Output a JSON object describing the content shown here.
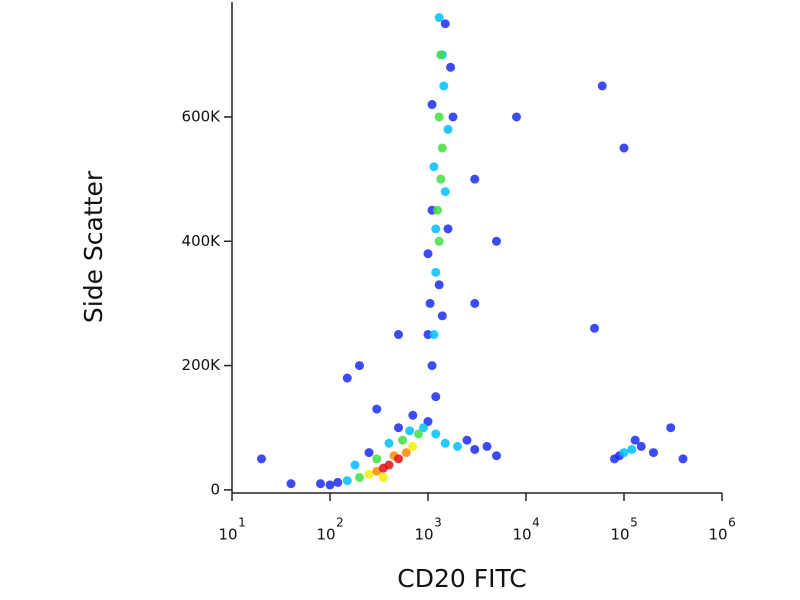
{
  "chart_data": {
    "type": "scatter",
    "x_label": "CD20 FITC",
    "y_label": "Side Scatter",
    "xscale": "log",
    "xlim": [
      10,
      1000000
    ],
    "ylim": [
      -5000,
      785000
    ],
    "xticks": [
      {
        "value": 10,
        "label": "10",
        "sup": "1"
      },
      {
        "value": 100,
        "label": "10",
        "sup": "2"
      },
      {
        "value": 1000,
        "label": "10",
        "sup": "3"
      },
      {
        "value": 10000,
        "label": "10",
        "sup": "4"
      },
      {
        "value": 100000,
        "label": "10",
        "sup": "5"
      },
      {
        "value": 1000000,
        "label": "10",
        "sup": "6"
      }
    ],
    "yticks": [
      0,
      {
        "value": 200000,
        "label": "200K"
      },
      {
        "value": 400000,
        "label": "400K"
      },
      {
        "value": 600000,
        "label": "600K"
      }
    ],
    "series": [
      {
        "x": [
          120,
          1000,
          700,
          100,
          250,
          500,
          80,
          1200,
          1100,
          1050,
          1500,
          1100,
          1700,
          1000,
          1600,
          1000,
          1400,
          1300,
          1100,
          1800,
          3000,
          4000,
          5000,
          2500,
          90000,
          150000,
          80000,
          130000,
          200000,
          300,
          200,
          500,
          3000,
          5000,
          8000,
          60000,
          100000,
          3000,
          150,
          50000,
          20,
          300000,
          40,
          400000,
          150,
          900,
          650,
          180,
          400,
          1150,
          1200,
          1450,
          1400,
          1200,
          1500,
          1150,
          1600,
          1300,
          1500,
          2000,
          1200,
          100000,
          120000,
          800,
          200,
          550,
          300,
          1300,
          1250,
          1350,
          1400,
          1300,
          1350,
          700,
          250,
          350,
          600,
          300,
          450,
          400,
          500,
          350
        ],
        "values": [
          12000,
          110000,
          120000,
          8000,
          60000,
          100000,
          10000,
          150000,
          200000,
          300000,
          750000,
          620000,
          680000,
          380000,
          420000,
          250000,
          280000,
          330000,
          450000,
          600000,
          65000,
          70000,
          55000,
          80000,
          55000,
          70000,
          50000,
          80000,
          60000,
          130000,
          200000,
          250000,
          300000,
          400000,
          600000,
          650000,
          550000,
          500000,
          180000,
          260000,
          50000,
          100000,
          10000,
          50000,
          15000,
          100000,
          95000,
          40000,
          75000,
          250000,
          350000,
          650000,
          700000,
          420000,
          480000,
          520000,
          580000,
          760000,
          75000,
          70000,
          90000,
          60000,
          65000,
          90000,
          20000,
          80000,
          50000,
          400000,
          450000,
          500000,
          550000,
          600000,
          700000,
          70000,
          25000,
          20000,
          60000,
          30000,
          55000,
          40000,
          50000,
          35000
        ],
        "colors": [
          "#1a2cf0",
          "#1a2cf0",
          "#1a2cf0",
          "#1a2cf0",
          "#1a2cf0",
          "#1a2cf0",
          "#1a2cf0",
          "#1a2cf0",
          "#1a2cf0",
          "#1a2cf0",
          "#1a2cf0",
          "#1a2cf0",
          "#1a2cf0",
          "#1a2cf0",
          "#1a2cf0",
          "#1a2cf0",
          "#1a2cf0",
          "#1a2cf0",
          "#1a2cf0",
          "#1a2cf0",
          "#1a2cf0",
          "#1a2cf0",
          "#1a2cf0",
          "#1a2cf0",
          "#1a2cf0",
          "#1a2cf0",
          "#1a2cf0",
          "#1a2cf0",
          "#1a2cf0",
          "#1a2cf0",
          "#1a2cf0",
          "#1a2cf0",
          "#1a2cf0",
          "#1a2cf0",
          "#1a2cf0",
          "#1a2cf0",
          "#1a2cf0",
          "#1a2cf0",
          "#1a2cf0",
          "#1a2cf0",
          "#1a2cf0",
          "#1a2cf0",
          "#1a2cf0",
          "#1a2cf0",
          "#00c0ff",
          "#00c0ff",
          "#00c0ff",
          "#00c0ff",
          "#00c0ff",
          "#00c0ff",
          "#00c0ff",
          "#00c0ff",
          "#00c0ff",
          "#00c0ff",
          "#00c0ff",
          "#00c0ff",
          "#00c0ff",
          "#00c0ff",
          "#00c0ff",
          "#00c0ff",
          "#00c0ff",
          "#00c0ff",
          "#00c0ff",
          "#40e040",
          "#40e040",
          "#40e040",
          "#40e040",
          "#40e040",
          "#40e040",
          "#40e040",
          "#40e040",
          "#40e040",
          "#40e040",
          "#f0f000",
          "#f0f000",
          "#f0f000",
          "#ff8a00",
          "#ff8a00",
          "#ff8a00",
          "#e01010",
          "#e01010",
          "#e01010"
        ]
      }
    ]
  }
}
